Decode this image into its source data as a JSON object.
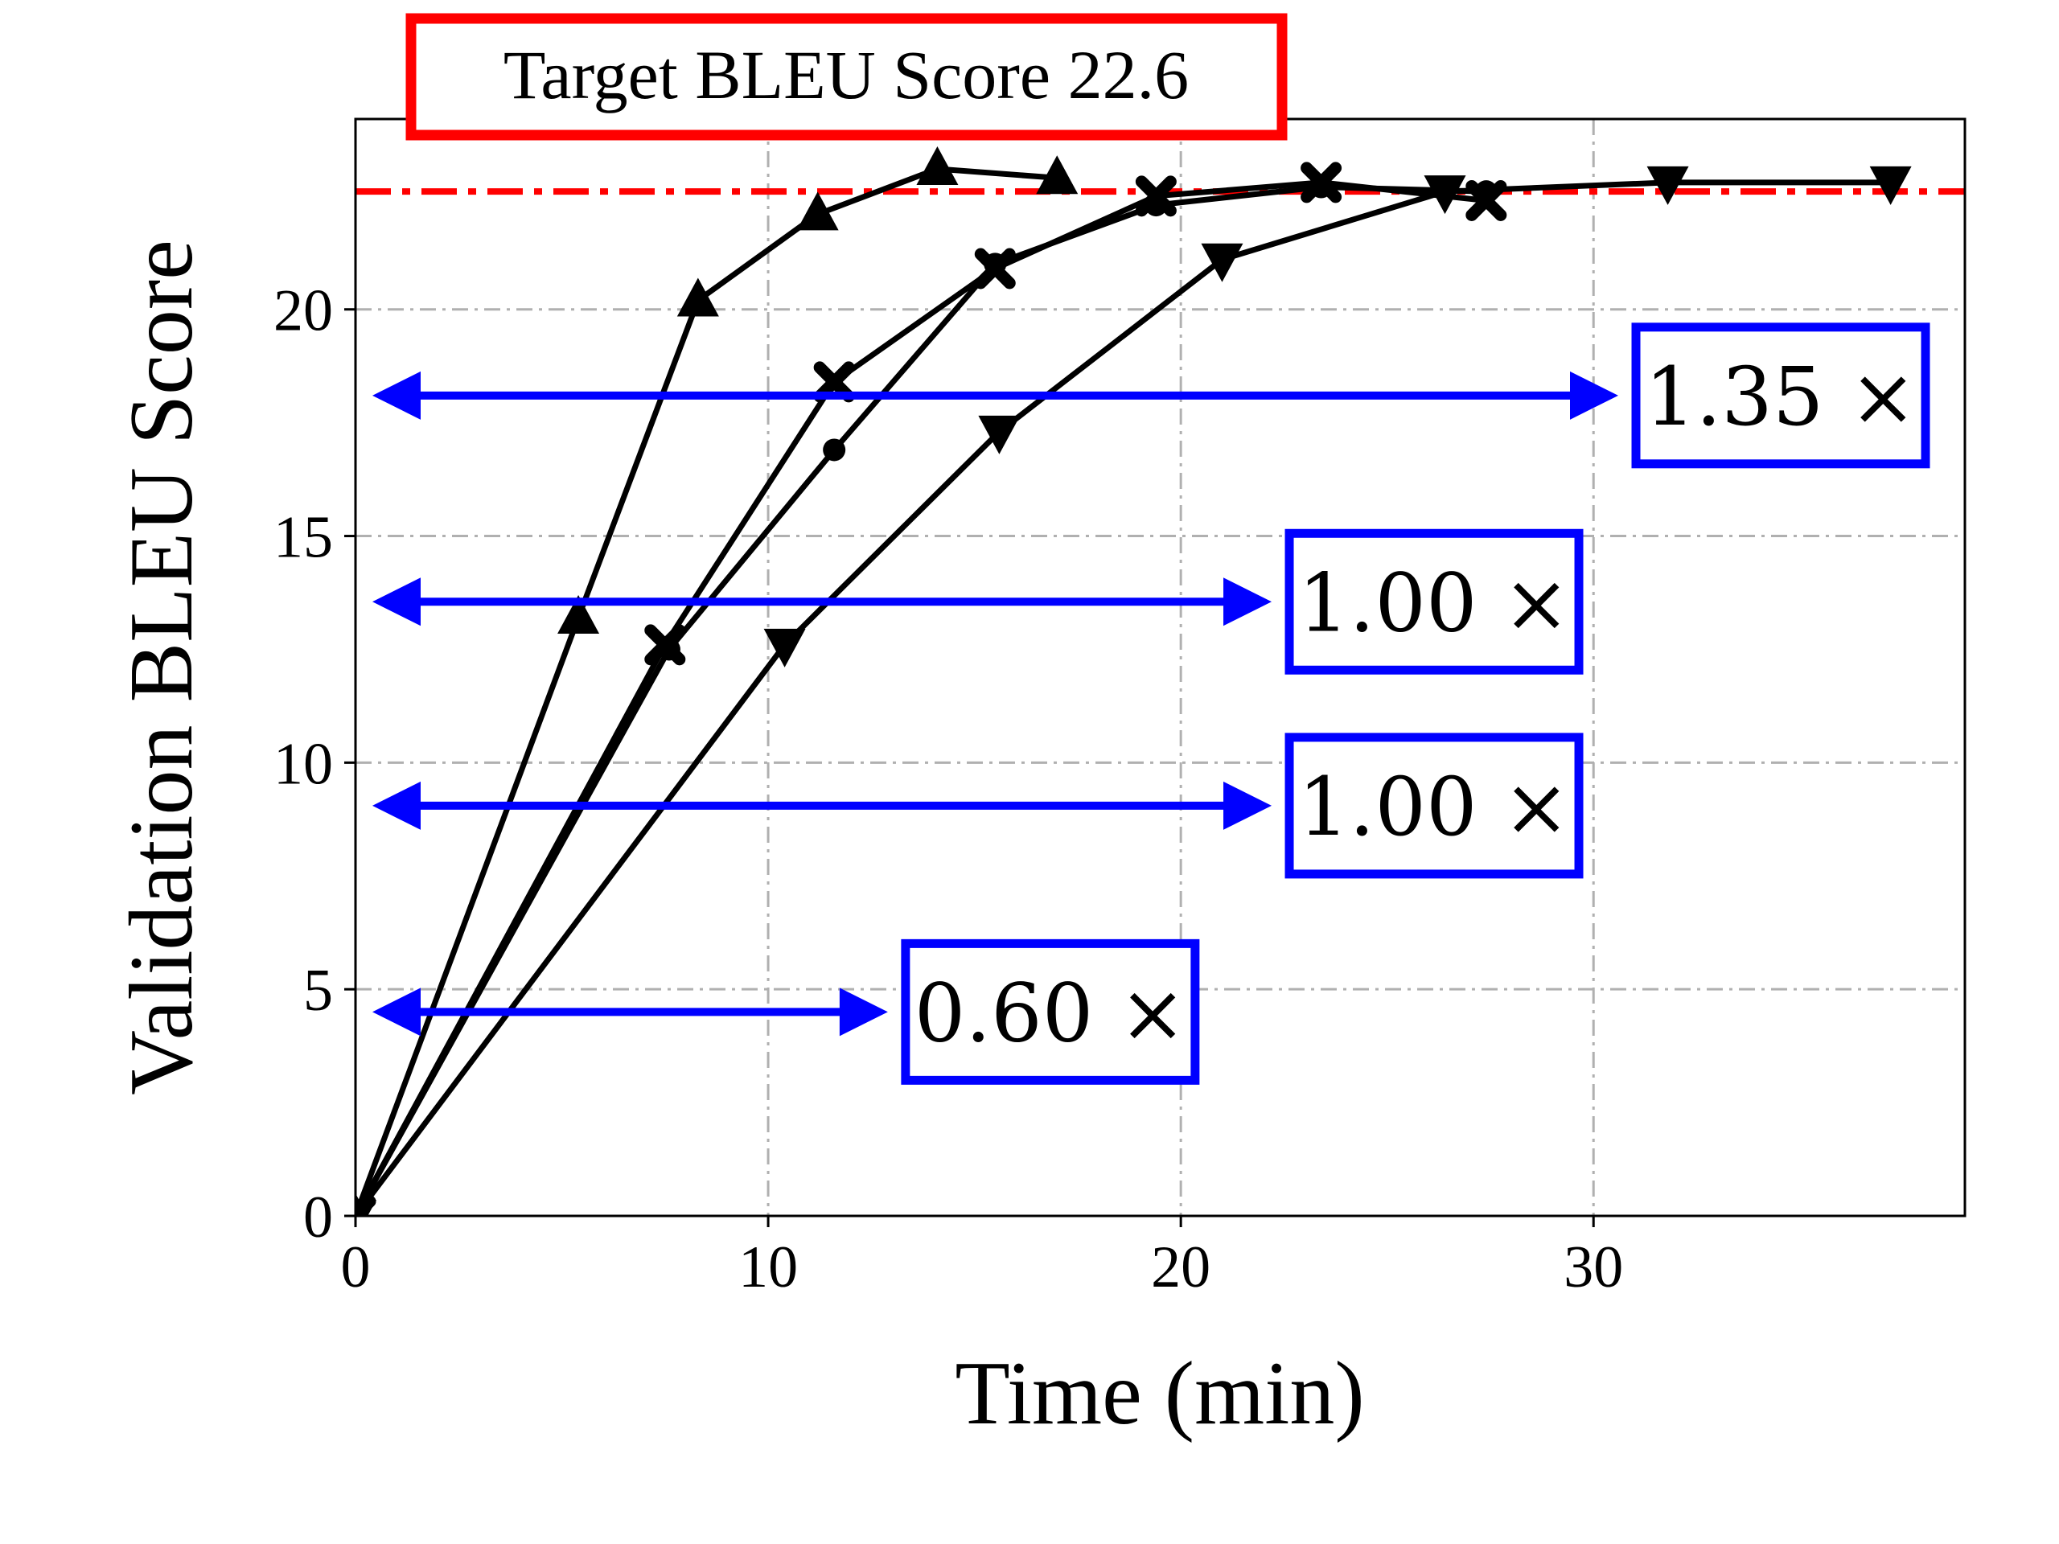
{
  "chart_data": {
    "type": "line",
    "title": "",
    "xlabel": "Time (min)",
    "ylabel": "Validation BLEU Score",
    "xlim": [
      0,
      39
    ],
    "ylim": [
      0,
      24.2
    ],
    "xticks": [
      0,
      10,
      20,
      30
    ],
    "yticks": [
      0,
      5,
      10,
      15,
      20
    ],
    "grid": true,
    "series": [
      {
        "marker": "triangle-up",
        "x": [
          0,
          5.4,
          8.3,
          11.2,
          14.1,
          17.0
        ],
        "y": [
          0,
          13.2,
          20.2,
          22.1,
          23.1,
          22.9
        ]
      },
      {
        "marker": "x",
        "x": [
          0,
          7.5,
          11.6,
          15.5,
          19.4,
          23.4,
          27.4
        ],
        "y": [
          0,
          12.6,
          18.4,
          20.9,
          22.5,
          22.8,
          22.4
        ]
      },
      {
        "marker": "circle",
        "x": [
          0,
          7.6,
          11.6,
          15.5,
          19.4,
          23.4,
          27.4
        ],
        "y": [
          0,
          12.5,
          16.9,
          21.0,
          22.3,
          22.7,
          22.6
        ]
      },
      {
        "marker": "triangle-down",
        "x": [
          0,
          10.4,
          15.6,
          21.0,
          26.4,
          31.8,
          37.2
        ],
        "y": [
          0,
          12.6,
          17.3,
          21.1,
          22.6,
          22.8,
          22.8
        ]
      }
    ],
    "target": {
      "value": 22.6,
      "label": "Target BLEU Score 22.6",
      "color": "#ff0000"
    },
    "annotations": [
      {
        "label": "1.35 ×",
        "y": 18.1,
        "x_end": 30.6
      },
      {
        "label": "1.00 ×",
        "y": 13.55,
        "x_end": 22.2
      },
      {
        "label": "1.00 ×",
        "y": 9.05,
        "x_end": 22.2
      },
      {
        "label": "0.60 ×",
        "y": 4.5,
        "x_end": 12.9
      }
    ],
    "colors": {
      "series": "#000000",
      "arrow": "#0000ff",
      "target": "#ff0000",
      "grid": "#b0b0b0"
    }
  }
}
